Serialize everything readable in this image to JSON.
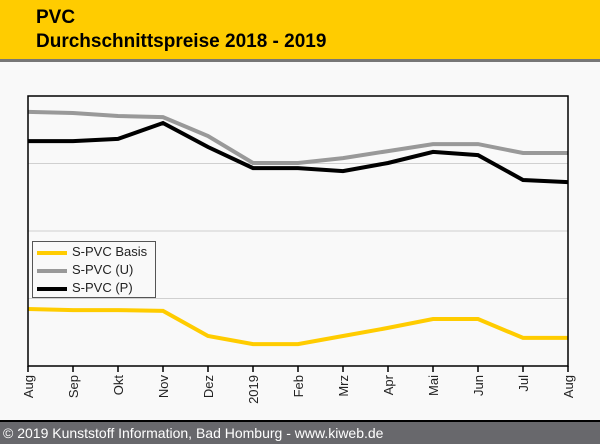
{
  "header": {
    "title_line1": "PVC",
    "title_line2": "Durchschnittspreise 2018 - 2019"
  },
  "footer": {
    "copyright": "© 2019 Kunststoff Information, Bad Homburg - www.kiweb.de"
  },
  "colors": {
    "header_bg": "#ffcc00",
    "footer_bg": "#68686c",
    "basis": "#ffcc00",
    "u": "#999999",
    "p": "#000000"
  },
  "chart_data": {
    "type": "line",
    "title": "PVC Durchschnittspreise 2018 - 2019",
    "xlabel": "",
    "ylabel": "",
    "x": [
      "Aug",
      "Sep",
      "Okt",
      "Nov",
      "Dez",
      "2019",
      "Feb",
      "Mrz",
      "Apr",
      "Mai",
      "Jun",
      "Jul",
      "Aug"
    ],
    "ylim": [
      0,
      100
    ],
    "y_tick_labels_shown": false,
    "grid": true,
    "gridlines_at": [
      25,
      50,
      75
    ],
    "legend_position": "center-left",
    "series": [
      {
        "name": "S-PVC Basis",
        "color": "#ffcc00",
        "values": [
          21.1,
          20.7,
          20.7,
          20.4,
          11.1,
          8.1,
          8.1,
          11.1,
          14.1,
          17.4,
          17.4,
          10.4,
          10.4
        ]
      },
      {
        "name": "S-PVC (U)",
        "color": "#999999",
        "values": [
          94.1,
          93.7,
          92.6,
          92.2,
          85.2,
          75.2,
          75.2,
          77.0,
          79.6,
          82.2,
          82.2,
          78.9,
          78.9
        ]
      },
      {
        "name": "S-PVC (P)",
        "color": "#000000",
        "values": [
          83.3,
          83.3,
          84.1,
          90.0,
          81.1,
          73.3,
          73.3,
          72.2,
          75.2,
          79.3,
          78.1,
          68.9,
          68.1
        ]
      }
    ]
  }
}
